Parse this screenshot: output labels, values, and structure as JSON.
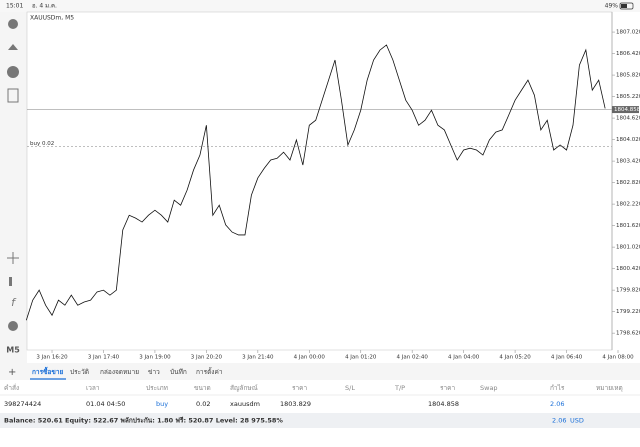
{
  "status_bar": {
    "time": "15:01",
    "date": "อ. 4 ม.ค.",
    "battery": "49%"
  },
  "chart_data": {
    "type": "line",
    "title": "XAUUSDm, M5",
    "categories": [
      null,
      null,
      null,
      null,
      "3 Jan 16:20",
      null,
      null,
      null,
      null,
      null,
      null,
      null,
      "3 Jan 17:40",
      null,
      null,
      null,
      null,
      null,
      null,
      null,
      "3 Jan 19:00",
      null,
      null,
      null,
      null,
      null,
      null,
      null,
      "3 Jan 20:20",
      null,
      null,
      null,
      null,
      null,
      null,
      null,
      "3 Jan 21:40",
      null,
      null,
      null,
      null,
      null,
      null,
      null,
      "4 Jan 00:00",
      null,
      null,
      null,
      null,
      null,
      null,
      null,
      "4 Jan 01:20",
      null,
      null,
      null,
      null,
      null,
      null,
      null,
      "4 Jan 02:40",
      null,
      null,
      null,
      null,
      null,
      null,
      null,
      "4 Jan 04:00",
      null,
      null,
      null,
      null,
      null,
      null,
      null,
      "4 Jan 05:20",
      null,
      null,
      null,
      null,
      null,
      null,
      null,
      "4 Jan 06:40",
      null,
      null,
      null,
      null,
      null,
      null,
      null,
      "4 Jan 08:00"
    ],
    "series": [
      {
        "name": "XAUUSDm",
        "color": "#111111",
        "values": [
          1798.98,
          1799.54,
          1799.82,
          1799.4,
          1799.12,
          1799.54,
          1799.4,
          1799.68,
          1799.4,
          1799.49,
          1799.54,
          1799.77,
          1799.82,
          1799.68,
          1799.82,
          1801.5,
          1801.91,
          1801.83,
          1801.72,
          1801.91,
          1802.05,
          1801.91,
          1801.72,
          1802.33,
          1802.19,
          1802.61,
          1803.17,
          1803.59,
          1804.42,
          1801.91,
          1802.19,
          1801.64,
          1801.44,
          1801.36,
          1801.36,
          1802.47,
          1802.95,
          1803.22,
          1803.45,
          1803.5,
          1803.67,
          1803.45,
          1804.01,
          1803.31,
          1804.42,
          1804.56,
          1805.12,
          1805.68,
          1806.24,
          1805.12,
          1803.87,
          1804.29,
          1804.84,
          1805.68,
          1806.24,
          1806.52,
          1806.66,
          1806.24,
          1805.68,
          1805.12,
          1804.84,
          1804.42,
          1804.56,
          1804.84,
          1804.42,
          1804.29,
          1803.87,
          1803.45,
          1803.73,
          1803.78,
          1803.73,
          1803.59,
          1804.01,
          1804.23,
          1804.29,
          1804.7,
          1805.12,
          1805.4,
          1805.68,
          1805.26,
          1804.29,
          1804.56,
          1803.73,
          1803.87,
          1803.73,
          1804.42,
          1806.1,
          1806.52,
          1805.4,
          1805.68,
          1804.89,
          null,
          null
        ]
      }
    ],
    "ylim": [
      1798.15,
      1807.58
    ],
    "yticks": [
      {
        "value": 1807.02,
        "label": "1807.020"
      },
      {
        "value": 1806.42,
        "label": "1806.420"
      },
      {
        "value": 1805.82,
        "label": "1805.820"
      },
      {
        "value": 1805.22,
        "label": "1805.220"
      },
      {
        "value": 1804.62,
        "label": "1804.620"
      },
      {
        "value": 1804.02,
        "label": "1804.020"
      },
      {
        "value": 1803.42,
        "label": "1803.420"
      },
      {
        "value": 1802.82,
        "label": "1802.820"
      },
      {
        "value": 1802.22,
        "label": "1802.220"
      },
      {
        "value": 1801.62,
        "label": "1801.620"
      },
      {
        "value": 1801.02,
        "label": "1801.020"
      },
      {
        "value": 1800.42,
        "label": "1800.420"
      },
      {
        "value": 1799.82,
        "label": "1799.820"
      },
      {
        "value": 1799.22,
        "label": "1799.220"
      },
      {
        "value": 1798.62,
        "label": "1798.620"
      }
    ],
    "order_line": {
      "value": 1803.829,
      "label": "buy 0.02"
    },
    "price_line": {
      "value": 1804.858,
      "label": "1804.858"
    },
    "timeframe_button": "M5"
  },
  "tabs": [
    "การซื้อขาย",
    "ประวัติ",
    "กล่องจดหมาย",
    "ข่าว",
    "บันทึก",
    "การตั้งค่า"
  ],
  "table": {
    "headers": [
      "คำสั่ง",
      "เวลา",
      "ประเภท",
      "ขนาด",
      "สัญลักษณ์",
      "ราคา",
      "S/L",
      "T/P",
      "ราคา",
      "Swap",
      "กำไร",
      "หมายเหตุ"
    ],
    "row": {
      "order": "398274424",
      "time": "01.04 04:50",
      "type": "buy",
      "size": "0.02",
      "symbol": "xauusdm",
      "open_price": "1803.829",
      "price": "1804.858",
      "profit": "2.06"
    }
  },
  "footer": {
    "summary": "Balance: 520.61 Equity: 522.67 พลักประกัน: 1.80 ฟรี: 520.87 Level: 28 975.58%",
    "total": "2.06",
    "currency": "USD"
  }
}
